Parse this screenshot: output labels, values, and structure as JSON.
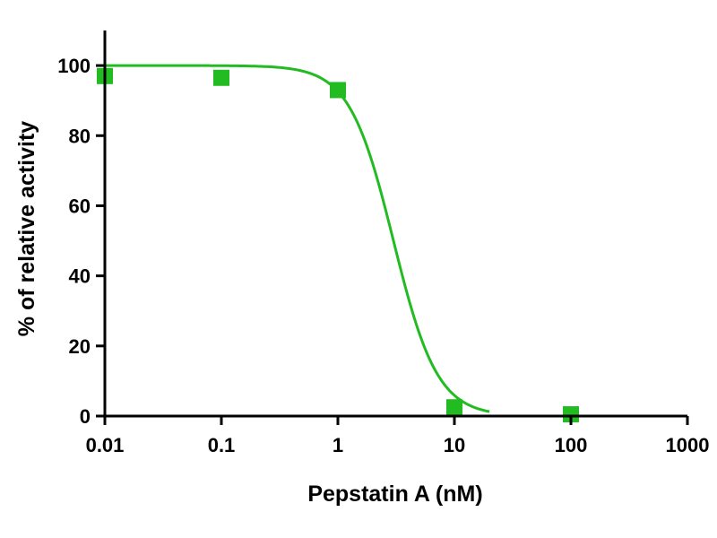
{
  "chart_data": {
    "type": "scatter",
    "title": "",
    "xlabel": "Pepstatin A (nM)",
    "ylabel": "% of relative activity",
    "x_scale": "log",
    "xlim": [
      0.01,
      1000
    ],
    "ylim": [
      0,
      110
    ],
    "x_ticks": [
      0.01,
      0.1,
      1,
      10,
      100,
      1000
    ],
    "x_tick_labels": [
      "0.01",
      "0.1",
      "1",
      "10",
      "100",
      "1000"
    ],
    "y_ticks": [
      0,
      20,
      40,
      60,
      80,
      100
    ],
    "y_tick_labels": [
      "0",
      "20",
      "40",
      "60",
      "80",
      "100"
    ],
    "grid": false,
    "legend": "none",
    "series": [
      {
        "x": [
          0.01,
          0.1,
          1,
          10,
          100
        ],
        "y": [
          97,
          96.5,
          93,
          2.5,
          0.5
        ],
        "marker": "square",
        "color": "#22bb22"
      }
    ],
    "fit_curve": {
      "model": "sigmoidal dose-response",
      "top": 100,
      "bottom": 0,
      "ic50": 3,
      "hill_slope": 2.3,
      "x_range": [
        0.01,
        20
      ],
      "color": "#22bb22"
    }
  }
}
